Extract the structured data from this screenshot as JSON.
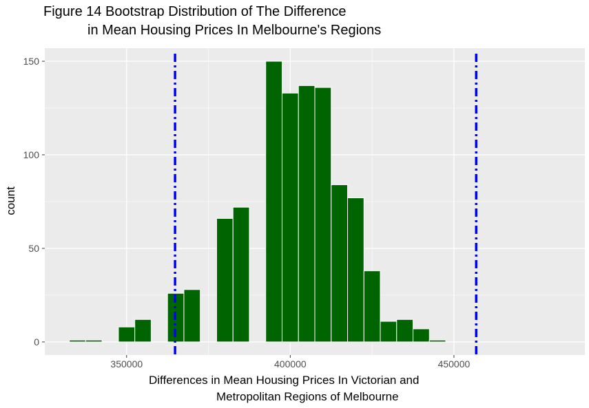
{
  "title_line1": "Figure 14 Bootstrap Distribution of The Difference",
  "title_line2": "in Mean Housing Prices In Melbourne's Regions",
  "xlabel_line1": "Differences in Mean Housing Prices In Victorian and",
  "xlabel_line2": "Metropolitan Regions of Melbourne",
  "ylabel": "count",
  "colors": {
    "panel": "#EBEBEB",
    "grid": "#FFFFFF",
    "bar_fill": "#006400",
    "bar_outline": "#FFFFFF",
    "ci_line": "#0000FF"
  },
  "chart_data": {
    "type": "bar",
    "subtype": "histogram",
    "bins": [
      {
        "x0": 332500,
        "x1": 337500,
        "count": 1
      },
      {
        "x0": 337500,
        "x1": 342500,
        "count": 1
      },
      {
        "x0": 342500,
        "x1": 347500,
        "count": 0
      },
      {
        "x0": 347500,
        "x1": 352500,
        "count": 8
      },
      {
        "x0": 352500,
        "x1": 357500,
        "count": 12
      },
      {
        "x0": 357500,
        "x1": 362500,
        "count": 0
      },
      {
        "x0": 362500,
        "x1": 367500,
        "count": 26
      },
      {
        "x0": 367500,
        "x1": 372500,
        "count": 28
      },
      {
        "x0": 372500,
        "x1": 377500,
        "count": 0
      },
      {
        "x0": 377500,
        "x1": 382500,
        "count": 66
      },
      {
        "x0": 382500,
        "x1": 387500,
        "count": 72
      },
      {
        "x0": 387500,
        "x1": 392500,
        "count": 0
      },
      {
        "x0": 392500,
        "x1": 397500,
        "count": 150
      },
      {
        "x0": 397500,
        "x1": 402500,
        "count": 133
      },
      {
        "x0": 402500,
        "x1": 407500,
        "count": 137
      },
      {
        "x0": 407500,
        "x1": 412500,
        "count": 136
      },
      {
        "x0": 412500,
        "x1": 417500,
        "count": 84
      },
      {
        "x0": 417500,
        "x1": 422500,
        "count": 77
      },
      {
        "x0": 422500,
        "x1": 427500,
        "count": 38
      },
      {
        "x0": 427500,
        "x1": 432500,
        "count": 11
      },
      {
        "x0": 432500,
        "x1": 437500,
        "count": 12
      },
      {
        "x0": 437500,
        "x1": 442500,
        "count": 7
      },
      {
        "x0": 442500,
        "x1": 447500,
        "count": 1
      }
    ],
    "ci_lines": [
      364800,
      456800
    ],
    "xlim": [
      325000,
      490000
    ],
    "ylim": [
      -7,
      157
    ],
    "xticks": [
      350000,
      400000,
      450000
    ],
    "yticks": [
      0,
      50,
      100,
      150
    ],
    "xlabel": "Differences in Mean Housing Prices In Victorian and Metropolitan Regions of Melbourne",
    "ylabel": "count",
    "grid": true
  }
}
